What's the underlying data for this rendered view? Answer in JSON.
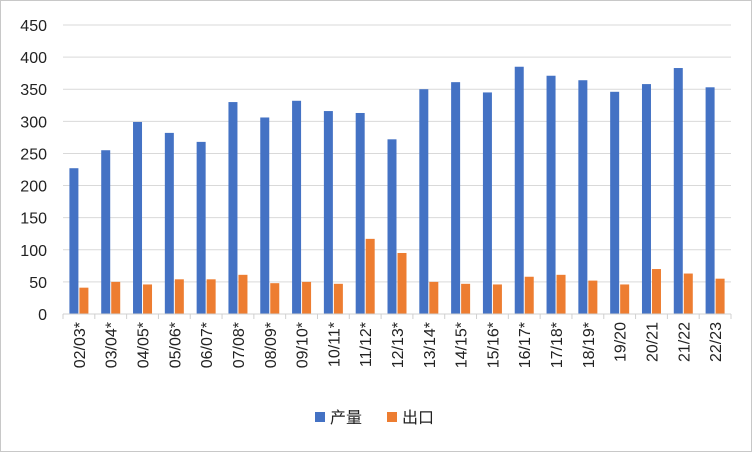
{
  "chart_data": {
    "type": "bar",
    "categories": [
      "02/03*",
      "03/04*",
      "04/05*",
      "05/06*",
      "06/07*",
      "07/08*",
      "08/09*",
      "09/10*",
      "10/11*",
      "11/12*",
      "12/13*",
      "13/14*",
      "14/15*",
      "15/16*",
      "16/17*",
      "17/18*",
      "18/19*",
      "19/20",
      "20/21",
      "21/22",
      "22/23"
    ],
    "series": [
      {
        "name": "产量",
        "color": "#4472C4",
        "values": [
          227,
          255,
          299,
          282,
          268,
          330,
          306,
          332,
          316,
          313,
          272,
          350,
          361,
          345,
          385,
          371,
          364,
          346,
          358,
          383,
          353
        ]
      },
      {
        "name": "出口",
        "color": "#ED7D31",
        "values": [
          41,
          50,
          46,
          54,
          54,
          61,
          48,
          50,
          47,
          117,
          95,
          50,
          47,
          46,
          58,
          61,
          52,
          46,
          70,
          63,
          55
        ]
      }
    ],
    "ylim": [
      0,
      450
    ],
    "yticks": [
      0,
      50,
      100,
      150,
      200,
      250,
      300,
      350,
      400,
      450
    ],
    "grid": true,
    "legend_position": "bottom"
  }
}
